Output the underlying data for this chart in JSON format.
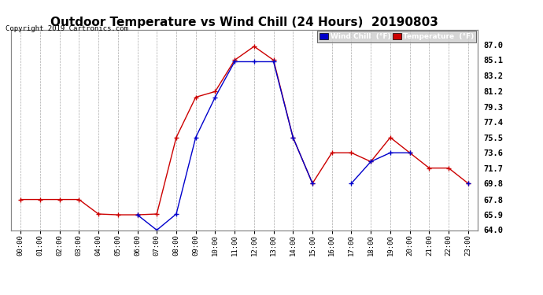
{
  "title": "Outdoor Temperature vs Wind Chill (24 Hours)  20190803",
  "copyright": "Copyright 2019 Cartronics.com",
  "legend_wind_chill": "Wind Chill  (°F)",
  "legend_temperature": "Temperature  (°F)",
  "background_color": "#ffffff",
  "plot_bg_color": "#ffffff",
  "grid_color": "#aaaaaa",
  "hours": [
    0,
    1,
    2,
    3,
    4,
    5,
    6,
    7,
    8,
    9,
    10,
    11,
    12,
    13,
    14,
    15,
    16,
    17,
    18,
    19,
    20,
    21,
    22,
    23
  ],
  "temperature": [
    67.8,
    67.8,
    67.8,
    67.8,
    66.0,
    65.9,
    65.9,
    66.0,
    75.5,
    80.5,
    81.2,
    85.1,
    86.8,
    85.1,
    75.5,
    69.8,
    73.6,
    73.6,
    72.5,
    75.5,
    73.6,
    71.7,
    71.7,
    69.8
  ],
  "wind_chill": [
    null,
    null,
    null,
    null,
    null,
    null,
    65.9,
    64.0,
    66.0,
    75.5,
    80.5,
    84.9,
    84.9,
    84.9,
    75.5,
    69.8,
    null,
    69.8,
    72.5,
    73.6,
    73.6,
    null,
    null,
    69.8
  ],
  "ylim_min": 64.0,
  "ylim_max": 88.9,
  "yticks": [
    64.0,
    65.9,
    67.8,
    69.8,
    71.7,
    73.6,
    75.5,
    77.4,
    79.3,
    81.2,
    83.2,
    85.1,
    87.0
  ],
  "title_fontsize": 11,
  "temp_color": "#cc0000",
  "wind_color": "#0000cc",
  "marker": "+",
  "marker_size": 5,
  "linewidth": 1.0
}
